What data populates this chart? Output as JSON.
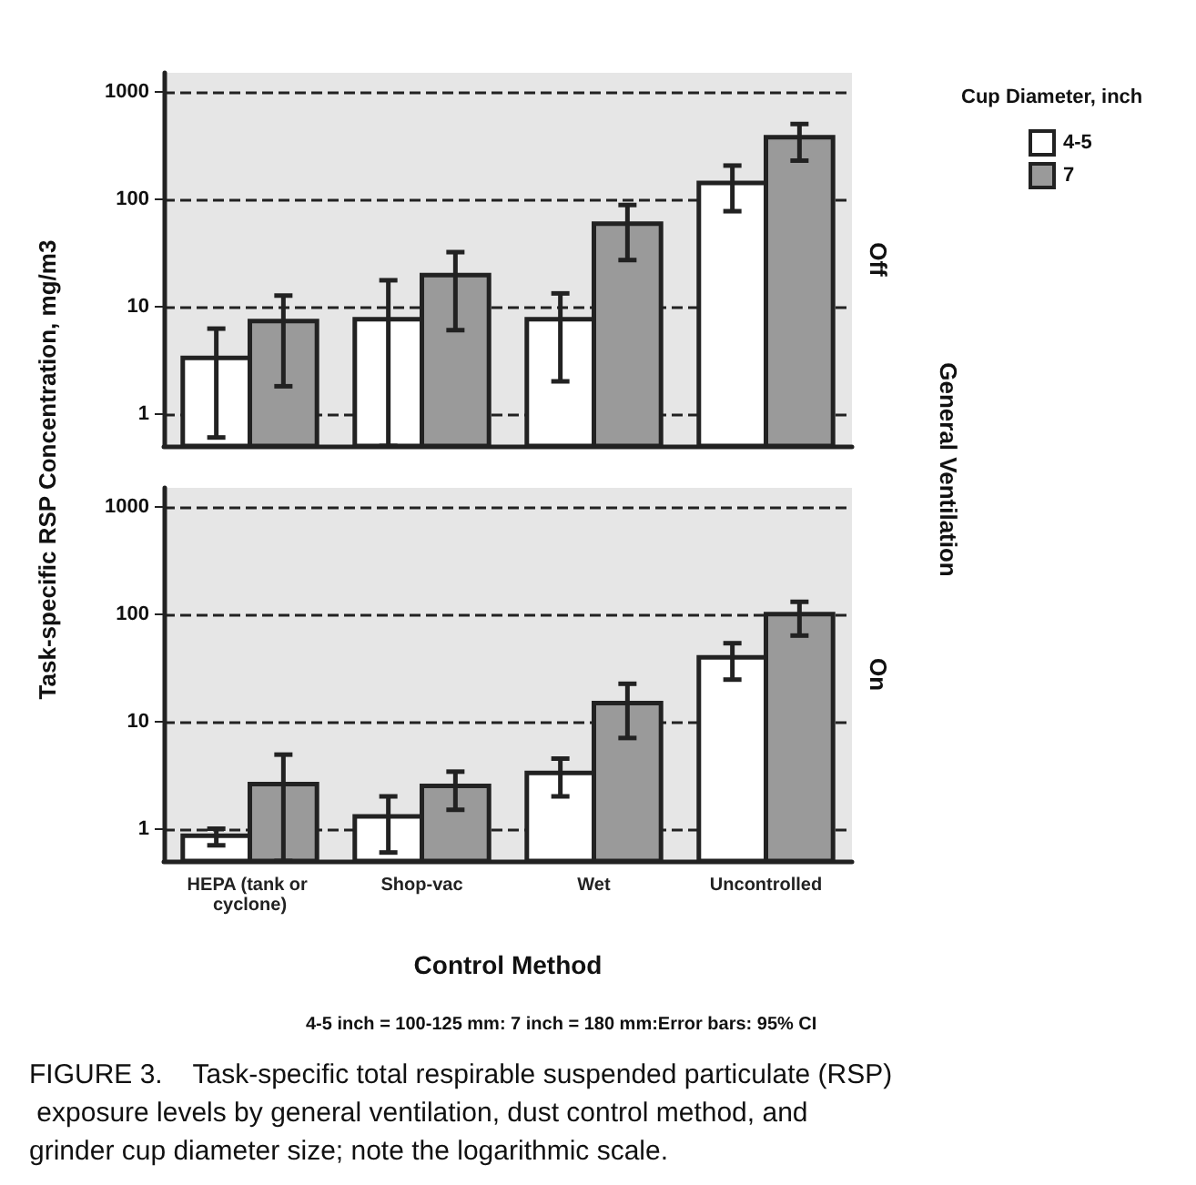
{
  "chart_data": [
    {
      "type": "bar",
      "ylabel": "Task-specific RSP Concentration, mg/m3",
      "y2label": "Off",
      "legend_title": "Cup Diameter, inch",
      "annotations": [
        "General Ventilation"
      ],
      "categories": [
        "HEPA (tank or cyclone)",
        "Shop-vac",
        "Wet",
        "Uncontrolled"
      ],
      "series": [
        {
          "name": "4-5",
          "color": "#ffffff",
          "values": [
            3.3,
            7.6,
            7.6,
            141
          ],
          "errors": [
            [
              0.6,
              6.2
            ],
            [
              0.5,
              17.5
            ],
            [
              2.0,
              13.2
            ],
            [
              77,
              205
            ]
          ]
        },
        {
          "name": "7",
          "color": "#9a9a9a",
          "values": [
            7.3,
            19.6,
            59,
            377
          ],
          "errors": [
            [
              1.8,
              12.6
            ],
            [
              6.0,
              32
            ],
            [
              27,
              88
            ],
            [
              228,
              500
            ]
          ]
        }
      ],
      "log": true,
      "ylim": [
        0.5,
        1500
      ],
      "yticks": [
        1,
        10,
        100,
        1000
      ],
      "grid": "y",
      "legend": "top right",
      "tick_labels": "y"
    },
    {
      "type": "bar",
      "xlabel": "Control Method",
      "y2label": "On",
      "annotations": [
        "4-5 inch = 100-125 mm: 7 inch = 180 mm:Error bars: 95% CI",
        "FIGURE 3.    Task-specific total respirable suspended particulate (RSP) exposure levels by general ventilation, dust control method, and grinder cup diameter size; note the logarithmic scale."
      ],
      "categories": [
        "HEPA (tank or cyclone)",
        "Shop-vac",
        "Wet",
        "Uncontrolled"
      ],
      "series": [
        {
          "color": "#ffffff",
          "values": [
            0.86,
            1.3,
            3.3,
            39.5
          ],
          "errors": [
            [
              0.7,
              1.0
            ],
            [
              0.6,
              2.0
            ],
            [
              2.0,
              4.5
            ],
            [
              24.5,
              53.5
            ]
          ]
        },
        {
          "color": "#9a9a9a",
          "values": [
            2.6,
            2.5,
            14.8,
            100
          ],
          "errors": [
            [
              0.5,
              4.9
            ],
            [
              1.5,
              3.4
            ],
            [
              7.0,
              22.4
            ],
            [
              63,
              130
            ]
          ]
        }
      ],
      "log": true,
      "ylim": [
        0.5,
        1500
      ],
      "yticks": [
        1,
        10,
        100,
        1000
      ],
      "grid": "y",
      "legend": false
    }
  ]
}
